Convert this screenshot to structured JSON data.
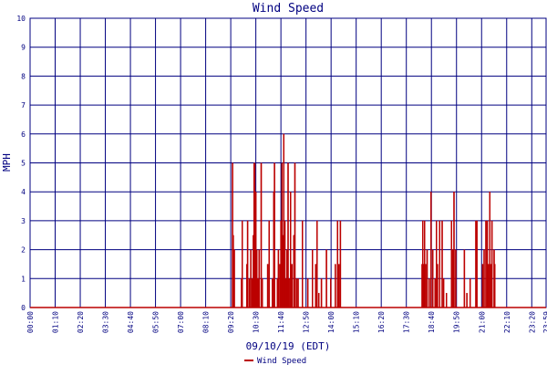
{
  "chart_data": {
    "type": "line",
    "title": "Wind Speed",
    "xlabel": "09/10/19 (EDT)",
    "ylabel": "MPH",
    "ylim": [
      0,
      10
    ],
    "xlim_minutes": [
      0,
      1440
    ],
    "grid": true,
    "legend_position": "bottom-center",
    "colors": {
      "series": "#bb0000",
      "grid": "#000080",
      "text": "#000080"
    },
    "y_ticks": [
      "0",
      "1",
      "2",
      "3",
      "4",
      "5",
      "6",
      "7",
      "8",
      "9",
      "10"
    ],
    "x_ticks": [
      "00:00",
      "01:10",
      "02:20",
      "03:30",
      "04:40",
      "05:50",
      "07:00",
      "08:10",
      "09:20",
      "10:30",
      "11:40",
      "12:50",
      "14:00",
      "15:10",
      "16:20",
      "17:30",
      "18:40",
      "19:50",
      "21:00",
      "22:10",
      "23:20",
      "23:59"
    ],
    "series": [
      {
        "name": "Wind Speed",
        "x_unit": "minutes after 00:00",
        "spikes": [
          [
            565,
            5
          ],
          [
            567,
            2.5
          ],
          [
            570,
            2
          ],
          [
            590,
            1
          ],
          [
            592,
            3
          ],
          [
            605,
            1.5
          ],
          [
            607,
            3
          ],
          [
            612,
            1
          ],
          [
            616,
            2
          ],
          [
            620,
            1
          ],
          [
            623,
            2.5
          ],
          [
            625,
            5
          ],
          [
            627,
            5
          ],
          [
            630,
            4
          ],
          [
            633,
            2
          ],
          [
            636,
            1
          ],
          [
            639,
            2
          ],
          [
            645,
            5
          ],
          [
            648,
            1
          ],
          [
            663,
            1.5
          ],
          [
            667,
            3
          ],
          [
            676,
            1
          ],
          [
            680,
            4
          ],
          [
            682,
            5
          ],
          [
            690,
            1
          ],
          [
            693,
            2
          ],
          [
            697,
            1.5
          ],
          [
            700,
            3
          ],
          [
            703,
            5
          ],
          [
            705,
            2.5
          ],
          [
            708,
            6
          ],
          [
            711,
            3
          ],
          [
            714,
            1
          ],
          [
            717,
            2
          ],
          [
            720,
            5
          ],
          [
            723,
            1
          ],
          [
            727,
            4
          ],
          [
            731,
            1.5
          ],
          [
            736,
            2.5
          ],
          [
            739,
            5
          ],
          [
            744,
            1
          ],
          [
            748,
            1
          ],
          [
            760,
            3
          ],
          [
            775,
            1
          ],
          [
            788,
            2
          ],
          [
            797,
            1.5
          ],
          [
            801,
            3
          ],
          [
            806,
            0.5
          ],
          [
            813,
            1
          ],
          [
            827,
            2
          ],
          [
            839,
            1
          ],
          [
            852,
            1.5
          ],
          [
            858,
            3
          ],
          [
            862,
            1.5
          ],
          [
            866,
            3
          ],
          [
            1094,
            1.5
          ],
          [
            1096,
            3
          ],
          [
            1098,
            1.5
          ],
          [
            1101,
            3
          ],
          [
            1104,
            1.5
          ],
          [
            1108,
            2
          ],
          [
            1114,
            1
          ],
          [
            1119,
            4
          ],
          [
            1124,
            2
          ],
          [
            1130,
            1
          ],
          [
            1134,
            3
          ],
          [
            1137,
            1.5
          ],
          [
            1143,
            3
          ],
          [
            1150,
            3
          ],
          [
            1154,
            1
          ],
          [
            1162,
            0.5
          ],
          [
            1176,
            3
          ],
          [
            1180,
            2
          ],
          [
            1183,
            4
          ],
          [
            1188,
            2
          ],
          [
            1212,
            2
          ],
          [
            1219,
            0.5
          ],
          [
            1228,
            1
          ],
          [
            1244,
            3
          ],
          [
            1247,
            3
          ],
          [
            1263,
            1.5
          ],
          [
            1267,
            2
          ],
          [
            1272,
            3
          ],
          [
            1276,
            3
          ],
          [
            1279,
            1.5
          ],
          [
            1283,
            4
          ],
          [
            1285,
            1.5
          ],
          [
            1289,
            3
          ],
          [
            1295,
            2
          ],
          [
            1297,
            1.5
          ]
        ]
      }
    ]
  }
}
